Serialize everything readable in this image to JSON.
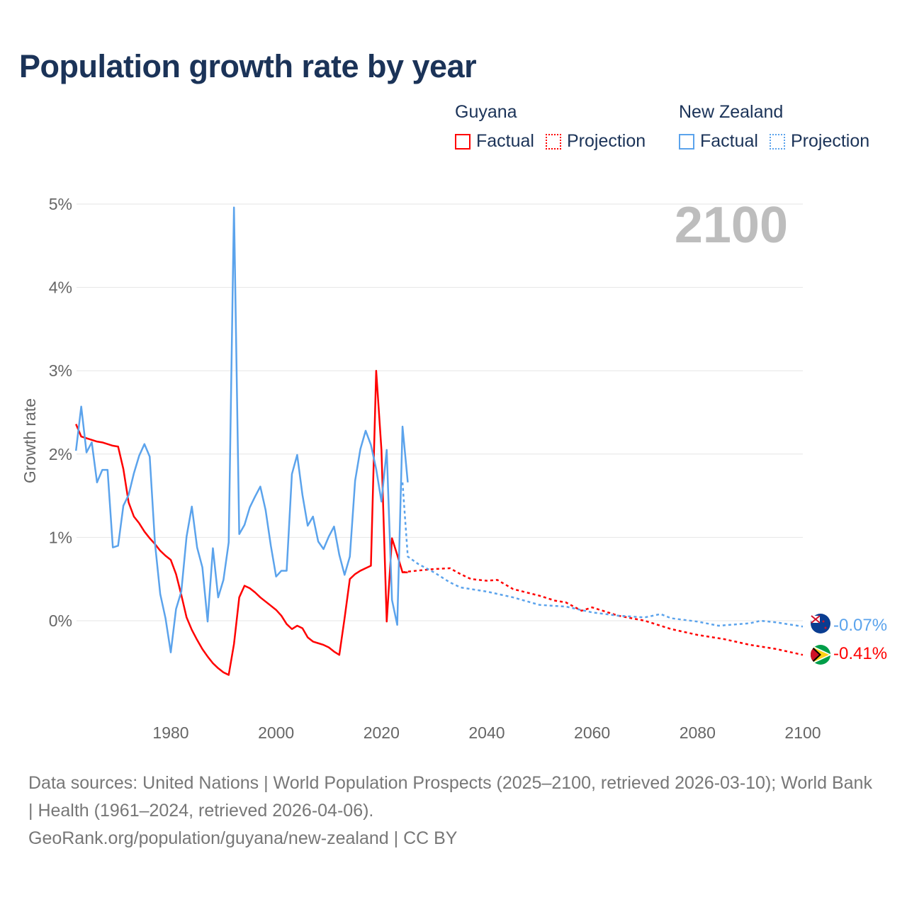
{
  "title": "Population growth rate by year",
  "legend": {
    "groups": [
      {
        "name": "Guyana",
        "factual": "Factual",
        "projection": "Projection",
        "color": "#ff0000"
      },
      {
        "name": "New Zealand",
        "factual": "Factual",
        "projection": "Projection",
        "color": "#5ba3ec"
      }
    ]
  },
  "chart_data": {
    "type": "line",
    "title": "Population growth rate by year",
    "ylabel": "Growth rate",
    "xlabel": "",
    "xlim": [
      1961,
      2100
    ],
    "ylim": [
      -1.0,
      5.0
    ],
    "x_ticks": [
      1980,
      2000,
      2020,
      2040,
      2060,
      2080,
      2100
    ],
    "x_tick_labels": [
      "1980",
      "2000",
      "2020",
      "2040",
      "2060",
      "2080",
      "2100"
    ],
    "y_ticks": [
      0,
      1,
      2,
      3,
      4,
      5
    ],
    "y_tick_labels": [
      "0%",
      "1%",
      "2%",
      "3%",
      "4%",
      "5%"
    ],
    "year_label": "2100",
    "grid": true,
    "series": [
      {
        "name": "Guyana",
        "color": "#ff0000",
        "end_label": "-0.41%",
        "factual": {
          "start_year": 1962,
          "values": [
            2.36,
            2.21,
            2.19,
            2.17,
            2.15,
            2.14,
            2.12,
            2.1,
            2.09,
            1.82,
            1.42,
            1.25,
            1.17,
            1.07,
            0.99,
            0.92,
            0.84,
            0.78,
            0.73,
            0.56,
            0.31,
            0.04,
            -0.11,
            -0.23,
            -0.34,
            -0.43,
            -0.51,
            -0.57,
            -0.62,
            -0.65,
            -0.28,
            0.28,
            0.42,
            0.39,
            0.34,
            0.28,
            0.23,
            0.18,
            0.13,
            0.06,
            -0.04,
            -0.1,
            -0.06,
            -0.09,
            -0.2,
            -0.25,
            -0.27,
            -0.29,
            -0.32,
            -0.37,
            -0.41,
            0.03,
            0.5,
            0.56,
            0.6,
            0.63,
            0.66,
            3.0,
            2.05,
            -0.01,
            0.99,
            0.79,
            0.58,
            0.58
          ]
        },
        "projection": {
          "x": [
            2024,
            2025,
            2030,
            2033,
            2035,
            2037,
            2040,
            2042,
            2045,
            2050,
            2053,
            2055,
            2058,
            2060,
            2065,
            2070,
            2075,
            2080,
            2085,
            2090,
            2095,
            2100
          ],
          "y": [
            0.58,
            0.59,
            0.62,
            0.63,
            0.56,
            0.5,
            0.48,
            0.49,
            0.38,
            0.3,
            0.24,
            0.22,
            0.12,
            0.16,
            0.06,
            0.0,
            -0.1,
            -0.17,
            -0.22,
            -0.29,
            -0.34,
            -0.41
          ]
        }
      },
      {
        "name": "New Zealand",
        "color": "#5ba3ec",
        "end_label": "-0.07%",
        "factual": {
          "start_year": 1962,
          "values": [
            2.04,
            2.57,
            2.02,
            2.14,
            1.66,
            1.81,
            1.81,
            0.88,
            0.9,
            1.38,
            1.51,
            1.77,
            1.98,
            2.12,
            1.97,
            0.93,
            0.32,
            0.03,
            -0.38,
            0.14,
            0.35,
            1.01,
            1.37,
            0.88,
            0.64,
            -0.01,
            0.87,
            0.28,
            0.49,
            0.94,
            4.96,
            1.04,
            1.15,
            1.36,
            1.49,
            1.61,
            1.33,
            0.9,
            0.53,
            0.6,
            0.6,
            1.76,
            1.99,
            1.51,
            1.14,
            1.25,
            0.95,
            0.86,
            1.01,
            1.13,
            0.79,
            0.55,
            0.77,
            1.68,
            2.06,
            2.28,
            2.11,
            1.82,
            1.43,
            2.05,
            0.25,
            -0.05,
            2.33,
            1.66
          ]
        },
        "projection": {
          "x": [
            2024,
            2025,
            2027,
            2030,
            2033,
            2035,
            2040,
            2045,
            2050,
            2055,
            2060,
            2065,
            2070,
            2073,
            2075,
            2080,
            2084,
            2090,
            2092,
            2095,
            2100
          ],
          "y": [
            1.66,
            0.77,
            0.68,
            0.58,
            0.46,
            0.4,
            0.35,
            0.28,
            0.19,
            0.17,
            0.1,
            0.06,
            0.04,
            0.08,
            0.03,
            -0.01,
            -0.06,
            -0.03,
            0.0,
            -0.02,
            -0.07
          ]
        }
      }
    ]
  },
  "footer": {
    "line1": "Data sources: United Nations | World Population Prospects (2025–2100, retrieved 2026-03-10); World Bank | Health (1961–2024, retrieved 2026-04-06).",
    "line2": "GeoRank.org/population/guyana/new-zealand | CC BY"
  }
}
